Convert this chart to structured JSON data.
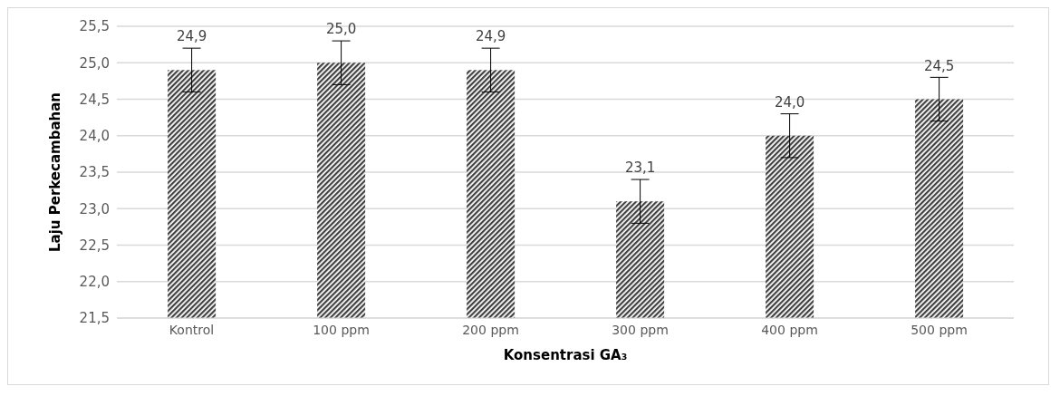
{
  "chart_data": {
    "type": "bar",
    "xlabel": "Konsentrasi GA₃",
    "ylabel": "Laju Perkecambahan",
    "categories": [
      "Kontrol",
      "100 ppm",
      "200 ppm",
      "300 ppm",
      "400 ppm",
      "500 ppm"
    ],
    "values": [
      24.9,
      25.0,
      24.9,
      23.1,
      24.0,
      24.5
    ],
    "errors": [
      0.3,
      0.3,
      0.3,
      0.3,
      0.3,
      0.3
    ],
    "value_labels": [
      "24,9",
      "25,0",
      "24,9",
      "23,1",
      "24,0",
      "24,5"
    ],
    "color": "#404040",
    "grid": "y",
    "ylim": [
      21.5,
      25.5
    ],
    "yticks": [
      {
        "value": 21.5,
        "label": "21,5"
      },
      {
        "value": 22,
        "label": "22,0"
      },
      {
        "value": 22.5,
        "label": "22,5"
      },
      {
        "value": 23,
        "label": "23,0"
      },
      {
        "value": 23.5,
        "label": "23,5"
      },
      {
        "value": 24,
        "label": "24,0"
      },
      {
        "value": 24.5,
        "label": "24,5"
      },
      {
        "value": 25,
        "label": "25,0"
      },
      {
        "value": 25.5,
        "label": "25,5"
      }
    ]
  }
}
